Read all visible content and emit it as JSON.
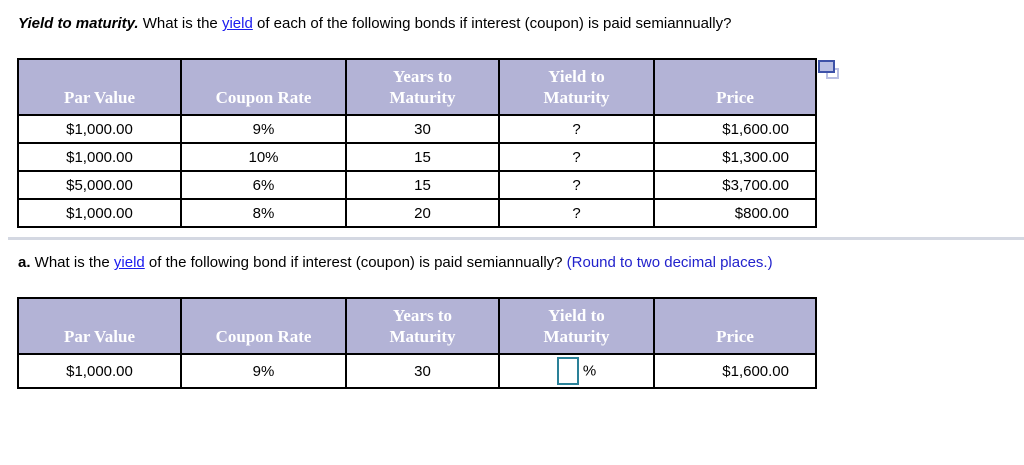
{
  "title": {
    "lead": "Yield to maturity.",
    "before_link": " What is the ",
    "link": "yield",
    "after_link": " of each of the following bonds if interest (coupon) is paid semiannually?"
  },
  "question_a": {
    "label": "a.",
    "before_link": " What is the ",
    "link": "yield",
    "after_link": " of the following bond if interest (coupon) is paid semiannually?  ",
    "instruction": "(Round to two decimal places.)"
  },
  "bonds_table": {
    "headers": [
      "Par Value",
      "Coupon Rate",
      "Years to\nMaturity",
      "Yield to\nMaturity",
      "Price"
    ],
    "rows": [
      [
        "$1,000.00",
        "9%",
        "30",
        "?",
        "$1,600.00"
      ],
      [
        "$1,000.00",
        "10%",
        "15",
        "?",
        "$1,300.00"
      ],
      [
        "$5,000.00",
        "6%",
        "15",
        "?",
        "$3,700.00"
      ],
      [
        "$1,000.00",
        "8%",
        "20",
        "?",
        "$800.00"
      ]
    ]
  },
  "answer_table": {
    "headers": [
      "Par Value",
      "Coupon Rate",
      "Years to\nMaturity",
      "Yield to\nMaturity",
      "Price"
    ],
    "row": {
      "par_value": "$1,000.00",
      "coupon_rate": "9%",
      "years_to_maturity": "30",
      "yield_input_value": "",
      "unit": "%",
      "price": "$1,600.00"
    }
  },
  "icons": {
    "popout": "pop-out-table-icon"
  },
  "colors": {
    "header_bg": "#b3b3d6",
    "header_text": "#ffffff",
    "table_border": "#000000",
    "link_blue": "#1a1aef",
    "instruction_blue": "#2222cc",
    "input_border_teal": "#2a8198",
    "divider_gray": "#d4d8e2",
    "popout_front_border": "#3d52a8",
    "popout_fill": "#b9bfe3"
  }
}
